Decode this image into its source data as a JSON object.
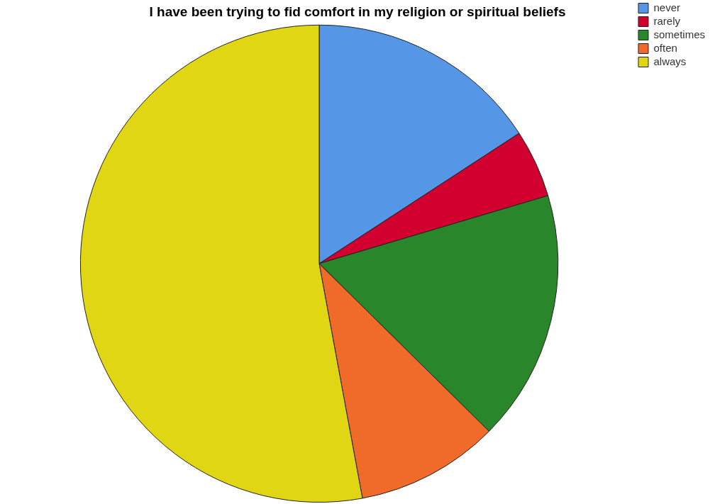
{
  "chart_data": {
    "type": "pie",
    "title": "I have been trying to fid comfort in my religion or spiritual beliefs",
    "categories": [
      "never",
      "rarely",
      "sometimes",
      "often",
      "always"
    ],
    "values": [
      15.8,
      4.6,
      17.0,
      9.7,
      52.9
    ],
    "colors": [
      "#5596e6",
      "#d2002e",
      "#2a862a",
      "#f06a2a",
      "#e1d614"
    ],
    "legend": "top right"
  }
}
